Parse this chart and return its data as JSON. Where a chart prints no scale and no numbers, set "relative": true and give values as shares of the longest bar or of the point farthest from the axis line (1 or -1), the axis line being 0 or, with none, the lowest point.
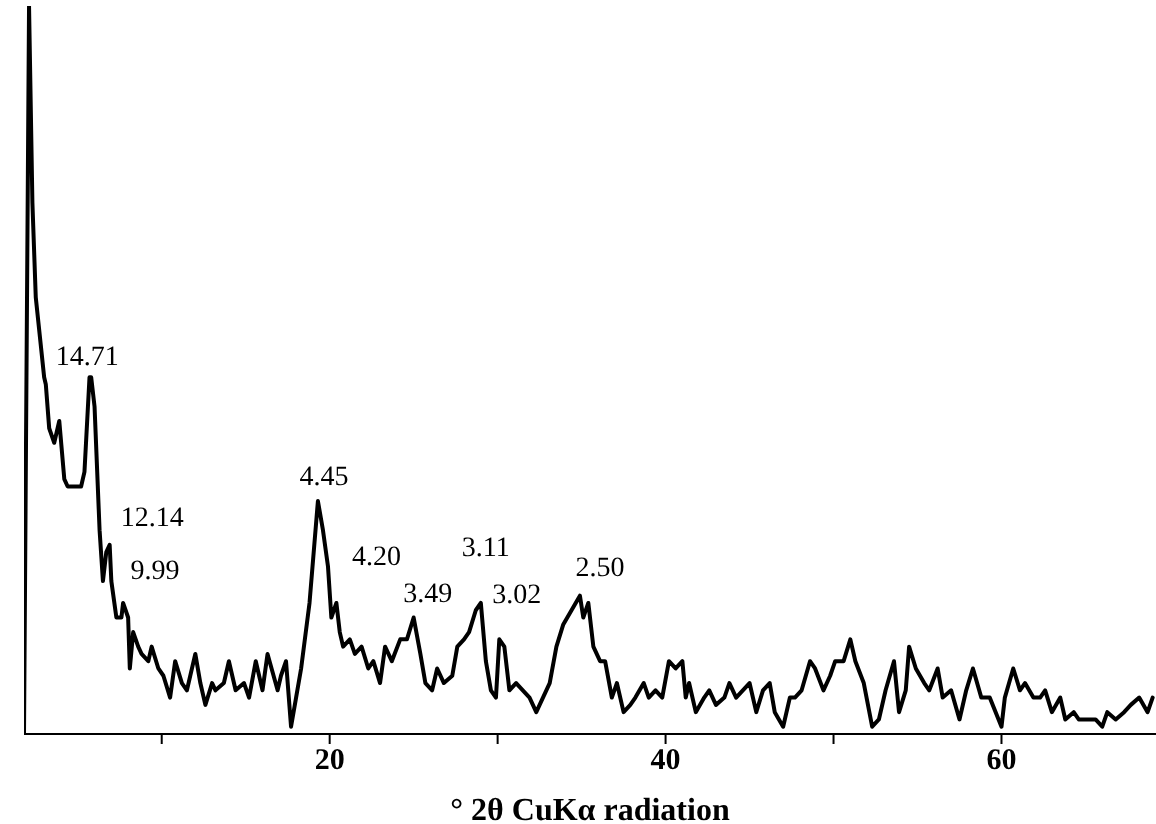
{
  "chart_data": {
    "type": "line",
    "xlabel": "° 2θ CuKα radiation",
    "relative": true,
    "xlim": [
      1.8,
      69.2
    ],
    "xticks": [
      {
        "value": 10,
        "label": null
      },
      20,
      {
        "value": 30,
        "label": null
      },
      40,
      {
        "value": 50,
        "label": null
      },
      60
    ],
    "series": [
      {
        "color": "#000000",
        "x": [
          1.8,
          2.1,
          2.3,
          2.5,
          3.0,
          3.1,
          3.3,
          3.6,
          3.9,
          4.2,
          4.4,
          4.9,
          5.2,
          5.4,
          5.7,
          5.8,
          6.0,
          6.3,
          6.5,
          6.7,
          6.9,
          7.0,
          7.3,
          7.6,
          7.7,
          8.0,
          8.1,
          8.3,
          8.6,
          8.8,
          9.2,
          9.4,
          9.8,
          10.1,
          10.5,
          10.8,
          11.2,
          11.5,
          12.0,
          12.3,
          12.6,
          13.0,
          13.2,
          13.7,
          14.0,
          14.4,
          14.9,
          15.2,
          15.6,
          16.0,
          16.3,
          16.9,
          17.1,
          17.4,
          17.7,
          18.0,
          18.3,
          18.8,
          19.3,
          19.6,
          19.9,
          20.1,
          20.4,
          20.6,
          20.8,
          21.2,
          21.5,
          21.9,
          22.3,
          22.6,
          23.0,
          23.3,
          23.7,
          24.2,
          24.6,
          25.0,
          25.4,
          25.7,
          26.1,
          26.4,
          26.8,
          27.3,
          27.6,
          28.0,
          28.3,
          28.7,
          29.0,
          29.3,
          29.6,
          29.9,
          30.1,
          30.4,
          30.7,
          31.1,
          31.5,
          31.9,
          32.3,
          32.7,
          33.1,
          33.5,
          33.9,
          34.4,
          34.9,
          35.1,
          35.4,
          35.7,
          36.1,
          36.4,
          36.8,
          37.1,
          37.5,
          37.9,
          38.2,
          38.7,
          39.0,
          39.4,
          39.8,
          40.2,
          40.6,
          41.0,
          41.2,
          41.4,
          41.8,
          42.3,
          42.6,
          43.0,
          43.5,
          43.8,
          44.2,
          44.6,
          45.0,
          45.4,
          45.8,
          46.2,
          46.5,
          47.0,
          47.4,
          47.7,
          48.1,
          48.6,
          48.9,
          49.4,
          49.8,
          50.1,
          50.6,
          51.0,
          51.3,
          51.8,
          52.3,
          52.7,
          53.1,
          53.6,
          53.9,
          54.3,
          54.5,
          54.9,
          55.4,
          55.7,
          56.2,
          56.5,
          57.0,
          57.5,
          57.9,
          58.3,
          58.8,
          59.3,
          60.0,
          60.2,
          60.7,
          61.1,
          61.4,
          61.9,
          62.3,
          62.6,
          63.0,
          63.5,
          63.8,
          64.3,
          64.6,
          65.1,
          65.6,
          66.0,
          66.3,
          66.8,
          67.3,
          67.7,
          68.2,
          68.7,
          69.0
        ],
        "values": [
          0.0,
          1.0,
          0.73,
          0.6,
          0.49,
          0.48,
          0.42,
          0.4,
          0.43,
          0.35,
          0.34,
          0.34,
          0.34,
          0.36,
          0.49,
          0.49,
          0.45,
          0.28,
          0.21,
          0.25,
          0.26,
          0.21,
          0.16,
          0.16,
          0.18,
          0.16,
          0.09,
          0.14,
          0.12,
          0.11,
          0.1,
          0.12,
          0.09,
          0.08,
          0.05,
          0.1,
          0.07,
          0.06,
          0.11,
          0.07,
          0.04,
          0.07,
          0.06,
          0.07,
          0.1,
          0.06,
          0.07,
          0.05,
          0.1,
          0.06,
          0.11,
          0.06,
          0.08,
          0.1,
          0.01,
          0.05,
          0.09,
          0.18,
          0.32,
          0.28,
          0.23,
          0.16,
          0.18,
          0.14,
          0.12,
          0.13,
          0.11,
          0.12,
          0.09,
          0.1,
          0.07,
          0.12,
          0.1,
          0.13,
          0.13,
          0.16,
          0.11,
          0.07,
          0.06,
          0.09,
          0.07,
          0.08,
          0.12,
          0.13,
          0.14,
          0.17,
          0.18,
          0.1,
          0.06,
          0.05,
          0.13,
          0.12,
          0.06,
          0.07,
          0.06,
          0.05,
          0.03,
          0.05,
          0.07,
          0.12,
          0.15,
          0.17,
          0.19,
          0.16,
          0.18,
          0.12,
          0.1,
          0.1,
          0.05,
          0.07,
          0.03,
          0.04,
          0.05,
          0.07,
          0.05,
          0.06,
          0.05,
          0.1,
          0.09,
          0.1,
          0.05,
          0.07,
          0.03,
          0.05,
          0.06,
          0.04,
          0.05,
          0.07,
          0.05,
          0.06,
          0.07,
          0.03,
          0.06,
          0.07,
          0.03,
          0.01,
          0.05,
          0.05,
          0.06,
          0.1,
          0.09,
          0.06,
          0.08,
          0.1,
          0.1,
          0.13,
          0.1,
          0.07,
          0.01,
          0.02,
          0.06,
          0.1,
          0.03,
          0.06,
          0.12,
          0.09,
          0.07,
          0.06,
          0.09,
          0.05,
          0.06,
          0.02,
          0.06,
          0.09,
          0.05,
          0.05,
          0.01,
          0.05,
          0.09,
          0.06,
          0.07,
          0.05,
          0.05,
          0.06,
          0.03,
          0.05,
          0.02,
          0.03,
          0.02,
          0.02,
          0.02,
          0.01,
          0.03,
          0.02,
          0.03,
          0.04,
          0.05,
          0.03,
          0.05
        ]
      }
    ],
    "annotations": [
      {
        "text": "14.71",
        "x": 5.8,
        "y": 0.49
      },
      {
        "text": "12.14",
        "x": 6.7,
        "y": 0.25
      },
      {
        "text": "9.99",
        "x": 7.7,
        "y": 0.18
      },
      {
        "text": "4.45",
        "x": 19.3,
        "y": 0.32
      },
      {
        "text": "4.20",
        "x": 20.4,
        "y": 0.18
      },
      {
        "text": "3.49",
        "x": 25.0,
        "y": 0.16
      },
      {
        "text": "3.11",
        "x": 28.7,
        "y": 0.17
      },
      {
        "text": "3.02",
        "x": 29.0,
        "y": 0.18
      },
      {
        "text": "2.50",
        "x": 34.9,
        "y": 0.19
      }
    ]
  }
}
